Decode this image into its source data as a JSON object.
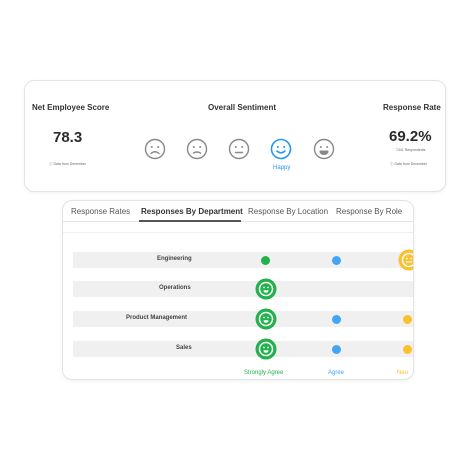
{
  "summary": {
    "nes": {
      "title": "Net Employee Score",
      "value": "78.3",
      "note": "ⓘ Data from December"
    },
    "sentiment": {
      "title": "Overall Sentiment",
      "faces": [
        {
          "icon": "sad-face-icon",
          "selected": false
        },
        {
          "icon": "frown-face-icon",
          "selected": false
        },
        {
          "icon": "neutral-face-icon",
          "selected": false
        },
        {
          "icon": "happy-face-icon",
          "selected": true
        },
        {
          "icon": "very-happy-face-icon",
          "selected": false
        }
      ],
      "selected_label": "Happy"
    },
    "response_rate": {
      "title": "Response Rate",
      "value": "69.2%",
      "respondents": "7441 Respondents",
      "note": "ⓘ Data from December"
    }
  },
  "tabs": [
    {
      "label": "Response Rates",
      "active": false
    },
    {
      "label": "Responses By Department",
      "active": true
    },
    {
      "label": "Response By Location",
      "active": false
    },
    {
      "label": "Response By Role",
      "active": false
    }
  ],
  "departments": [
    {
      "name": "Engineering",
      "strongly_agree": "dot",
      "agree": "dot",
      "neutral": "face"
    },
    {
      "name": "Operations",
      "strongly_agree": "face",
      "agree": "",
      "neutral": ""
    },
    {
      "name": "Product Management",
      "strongly_agree": "face",
      "agree": "dot",
      "neutral": "dot"
    },
    {
      "name": "Sales",
      "strongly_agree": "face",
      "agree": "dot",
      "neutral": "dot"
    }
  ],
  "legend": [
    {
      "label": "Strongly Agree",
      "color": "#22b14c"
    },
    {
      "label": "Agree",
      "color": "#42a5f5"
    },
    {
      "label": "Neu",
      "color": "#fbc02d"
    }
  ],
  "colors": {
    "accent_blue": "#2196f3",
    "face_gray": "#888888"
  }
}
